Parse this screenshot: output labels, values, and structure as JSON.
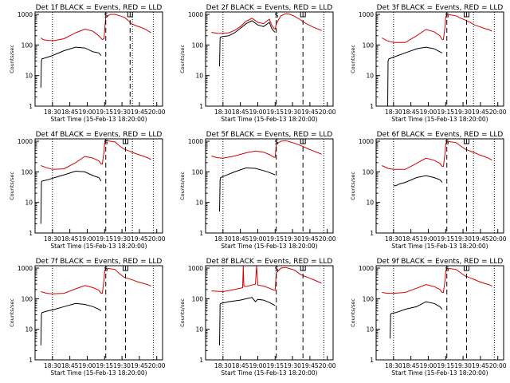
{
  "figure": {
    "y_tick_labels": [
      "1",
      "10",
      "100",
      "1000"
    ],
    "x_tick_labels": [
      "18:30",
      "18:45",
      "19:00",
      "19:15",
      "19:30",
      "19:45",
      "20:00"
    ],
    "ylabel": "Counts/sec",
    "xlabel": "Start Time (15-Feb-13 18:20:00)",
    "marker_labels": [
      "S",
      "E"
    ],
    "colors": {
      "events": "#000000",
      "lld": "#d40000",
      "axes": "#000000"
    }
  },
  "chart_data": [
    {
      "type": "line",
      "title": "Det 1f BLACK = Events, RED = LLD",
      "xunit": "minutes after 18:20",
      "yscale": "log",
      "ylim": [
        1,
        1200
      ],
      "xlim": [
        -5,
        105
      ],
      "grid": false,
      "legend": "none",
      "vlines": {
        "dotted": [
          10,
          79,
          97
        ],
        "dashed": [
          56,
          77
        ]
      },
      "series": [
        {
          "name": "Events",
          "x": [
            0,
            0.5,
            1,
            4,
            10,
            20,
            30,
            38,
            45,
            50,
            52
          ],
          "y": [
            4,
            30,
            35,
            38,
            45,
            65,
            85,
            80,
            60,
            55,
            45
          ]
        },
        {
          "name": "LLD",
          "x": [
            0,
            2,
            6,
            12,
            20,
            30,
            38,
            45,
            50,
            53,
            54.5,
            55,
            56,
            60,
            64,
            68,
            72,
            75,
            78,
            82,
            86,
            90,
            95
          ],
          "y": [
            170,
            150,
            140,
            140,
            160,
            250,
            330,
            280,
            200,
            150,
            160,
            300,
            800,
            1000,
            1000,
            900,
            800,
            650,
            500,
            430,
            380,
            330,
            250
          ]
        }
      ]
    },
    {
      "type": "line",
      "title": "Det 2f BLACK = Events, RED = LLD",
      "xunit": "minutes after 18:20",
      "yscale": "log",
      "ylim": [
        1,
        1200
      ],
      "xlim": [
        -5,
        105
      ],
      "grid": false,
      "legend": "none",
      "vlines": {
        "dotted": [
          10,
          97
        ],
        "dashed": [
          56,
          79
        ]
      },
      "series": [
        {
          "name": "Events",
          "x": [
            7,
            7.5,
            8,
            10,
            15,
            20,
            25,
            30,
            35,
            40,
            45,
            50,
            52,
            54,
            55
          ],
          "y": [
            20,
            170,
            180,
            190,
            200,
            250,
            350,
            500,
            620,
            450,
            400,
            550,
            350,
            280,
            260
          ]
        },
        {
          "name": "LLD",
          "x": [
            0,
            5,
            10,
            15,
            20,
            25,
            30,
            35,
            40,
            45,
            50,
            52,
            54,
            55,
            56,
            60,
            64,
            68,
            72,
            76,
            80,
            84,
            88,
            92,
            95
          ],
          "y": [
            260,
            240,
            240,
            250,
            300,
            400,
            600,
            750,
            550,
            500,
            700,
            450,
            350,
            330,
            500,
            900,
            1050,
            1000,
            850,
            700,
            550,
            450,
            380,
            330,
            300
          ]
        }
      ]
    },
    {
      "type": "line",
      "title": "Det 3f BLACK = Events, RED = LLD",
      "xunit": "minutes after 18:20",
      "yscale": "log",
      "ylim": [
        1,
        1200
      ],
      "xlim": [
        -5,
        105
      ],
      "grid": false,
      "legend": "none",
      "vlines": {
        "dotted": [
          10,
          79,
          97
        ],
        "dashed": [
          56,
          73
        ]
      },
      "series": [
        {
          "name": "Events",
          "x": [
            5,
            5.3,
            6,
            10,
            20,
            30,
            38,
            45,
            50,
            52
          ],
          "y": [
            1,
            30,
            35,
            40,
            55,
            75,
            85,
            75,
            60,
            55
          ]
        },
        {
          "name": "LLD",
          "x": [
            0,
            4,
            10,
            20,
            30,
            38,
            45,
            50,
            52,
            53,
            54.5,
            55,
            56,
            60,
            64,
            68,
            72,
            76,
            80,
            84,
            88,
            92,
            95
          ],
          "y": [
            170,
            140,
            120,
            120,
            200,
            320,
            270,
            200,
            150,
            150,
            400,
            800,
            1000,
            950,
            900,
            750,
            650,
            550,
            450,
            400,
            350,
            320,
            280
          ]
        }
      ]
    },
    {
      "type": "line",
      "title": "Det 4f BLACK = Events, RED = LLD",
      "xunit": "minutes after 18:20",
      "yscale": "log",
      "ylim": [
        1,
        1200
      ],
      "xlim": [
        -5,
        105
      ],
      "grid": false,
      "legend": "none",
      "vlines": {
        "dotted": [
          10,
          79,
          97
        ],
        "dashed": [
          56,
          73
        ]
      },
      "series": [
        {
          "name": "Events",
          "x": [
            0,
            0.5,
            1,
            6,
            12,
            20,
            30,
            38,
            45,
            50,
            52
          ],
          "y": [
            2,
            45,
            50,
            55,
            65,
            80,
            105,
            100,
            75,
            65,
            50
          ]
        },
        {
          "name": "LLD",
          "x": [
            0,
            4,
            10,
            20,
            30,
            38,
            45,
            50,
            52,
            53,
            54.5,
            55,
            56,
            60,
            64,
            68,
            72,
            76,
            80,
            84,
            88,
            92,
            95
          ],
          "y": [
            160,
            140,
            120,
            125,
            200,
            320,
            280,
            230,
            180,
            180,
            450,
            900,
            1050,
            1000,
            950,
            700,
            550,
            480,
            420,
            370,
            330,
            290,
            250
          ]
        }
      ]
    },
    {
      "type": "line",
      "title": "Det 5f BLACK = Events, RED = LLD",
      "xunit": "minutes after 18:20",
      "yscale": "log",
      "ylim": [
        1,
        1200
      ],
      "xlim": [
        -5,
        105
      ],
      "grid": false,
      "legend": "none",
      "vlines": {
        "dotted": [
          10,
          97
        ],
        "dashed": [
          56,
          79
        ]
      },
      "series": [
        {
          "name": "Events",
          "x": [
            7,
            7.5,
            8,
            12,
            20,
            30,
            38,
            45,
            50,
            55
          ],
          "y": [
            5,
            55,
            65,
            75,
            100,
            135,
            130,
            110,
            95,
            80
          ]
        },
        {
          "name": "LLD",
          "x": [
            0,
            5,
            10,
            20,
            30,
            38,
            45,
            50,
            54,
            55,
            56,
            60,
            64,
            68,
            72,
            76,
            80,
            84,
            88,
            92,
            95
          ],
          "y": [
            330,
            290,
            280,
            330,
            420,
            480,
            440,
            370,
            300,
            300,
            800,
            1000,
            1050,
            950,
            850,
            750,
            650,
            550,
            480,
            420,
            380
          ]
        }
      ]
    },
    {
      "type": "line",
      "title": "Det 6f BLACK = Events, RED = LLD",
      "xunit": "minutes after 18:20",
      "yscale": "log",
      "ylim": [
        1,
        1200
      ],
      "xlim": [
        -5,
        105
      ],
      "grid": false,
      "legend": "none",
      "vlines": {
        "dotted": [
          10,
          79,
          97
        ],
        "dashed": [
          56,
          73
        ]
      },
      "series": [
        {
          "name": "Events",
          "x": [
            10,
            12,
            15,
            20,
            30,
            38,
            45,
            50,
            52
          ],
          "y": [
            35,
            35,
            40,
            45,
            65,
            75,
            65,
            55,
            45
          ]
        },
        {
          "name": "LLD",
          "x": [
            0,
            5,
            10,
            20,
            30,
            38,
            45,
            50,
            52,
            53,
            54.5,
            55,
            56,
            60,
            64,
            68,
            72,
            76,
            80,
            84,
            88,
            92,
            95
          ],
          "y": [
            160,
            130,
            120,
            120,
            190,
            280,
            240,
            190,
            150,
            150,
            400,
            800,
            1000,
            950,
            900,
            700,
            550,
            480,
            420,
            360,
            320,
            280,
            240
          ]
        }
      ]
    },
    {
      "type": "line",
      "title": "Det 7f BLACK = Events, RED = LLD",
      "xunit": "minutes after 18:20",
      "yscale": "log",
      "ylim": [
        1,
        1200
      ],
      "xlim": [
        -5,
        105
      ],
      "grid": false,
      "legend": "none",
      "vlines": {
        "dotted": [
          10,
          97
        ],
        "dashed": [
          56,
          73
        ]
      },
      "series": [
        {
          "name": "Events",
          "x": [
            0,
            0.5,
            1,
            6,
            12,
            20,
            30,
            38,
            45,
            50,
            52
          ],
          "y": [
            3,
            30,
            35,
            40,
            45,
            55,
            70,
            65,
            55,
            45,
            40
          ]
        },
        {
          "name": "LLD",
          "x": [
            0,
            5,
            10,
            20,
            30,
            38,
            45,
            50,
            52,
            53,
            54.5,
            55,
            56,
            60,
            64,
            68,
            72,
            76,
            80,
            84,
            88,
            92,
            95
          ],
          "y": [
            170,
            150,
            145,
            150,
            210,
            270,
            230,
            190,
            150,
            150,
            400,
            800,
            1000,
            950,
            900,
            650,
            500,
            450,
            400,
            350,
            320,
            290,
            260
          ]
        }
      ]
    },
    {
      "type": "line",
      "title": "Det 8f BLACK = Events, RED = LLD",
      "xunit": "minutes after 18:20",
      "yscale": "log",
      "ylim": [
        1,
        1200
      ],
      "xlim": [
        -5,
        105
      ],
      "grid": false,
      "legend": "none",
      "vlines": {
        "dotted": [
          10,
          97
        ],
        "dashed": [
          56,
          79
        ]
      },
      "series": [
        {
          "name": "Events",
          "x": [
            7,
            7.5,
            8,
            15,
            20,
            25,
            30,
            35,
            38,
            40,
            45,
            50,
            55
          ],
          "y": [
            3,
            65,
            70,
            80,
            85,
            90,
            100,
            110,
            80,
            95,
            90,
            75,
            60
          ]
        },
        {
          "name": "LLD",
          "x": [
            0,
            10,
            20,
            25,
            27,
            27.5,
            28,
            30,
            35,
            38,
            39,
            40,
            45,
            50,
            54,
            55,
            56,
            60,
            64,
            68,
            72,
            76,
            80,
            84,
            88,
            92,
            95
          ],
          "y": [
            180,
            170,
            200,
            220,
            230,
            1200,
            260,
            250,
            280,
            300,
            1200,
            280,
            260,
            220,
            190,
            190,
            700,
            1000,
            1050,
            950,
            850,
            650,
            550,
            480,
            420,
            360,
            320
          ]
        }
      ]
    },
    {
      "type": "line",
      "title": "Det 9f BLACK = Events, RED = LLD",
      "xunit": "minutes after 18:20",
      "yscale": "log",
      "ylim": [
        1,
        1200
      ],
      "xlim": [
        -5,
        105
      ],
      "grid": false,
      "legend": "none",
      "vlines": {
        "dotted": [
          10,
          97
        ],
        "dashed": [
          56,
          73
        ]
      },
      "series": [
        {
          "name": "Events",
          "x": [
            7,
            7.5,
            8,
            12,
            20,
            30,
            38,
            45,
            50,
            52
          ],
          "y": [
            5,
            30,
            33,
            35,
            45,
            55,
            80,
            70,
            55,
            45
          ]
        },
        {
          "name": "LLD",
          "x": [
            0,
            5,
            10,
            20,
            30,
            38,
            45,
            50,
            52,
            53,
            54.5,
            55,
            56,
            60,
            64,
            68,
            72,
            76,
            80,
            84,
            88,
            92,
            95
          ],
          "y": [
            160,
            150,
            150,
            160,
            220,
            290,
            250,
            200,
            160,
            160,
            400,
            800,
            1000,
            950,
            900,
            700,
            550,
            480,
            420,
            360,
            320,
            290,
            260
          ]
        }
      ]
    }
  ]
}
